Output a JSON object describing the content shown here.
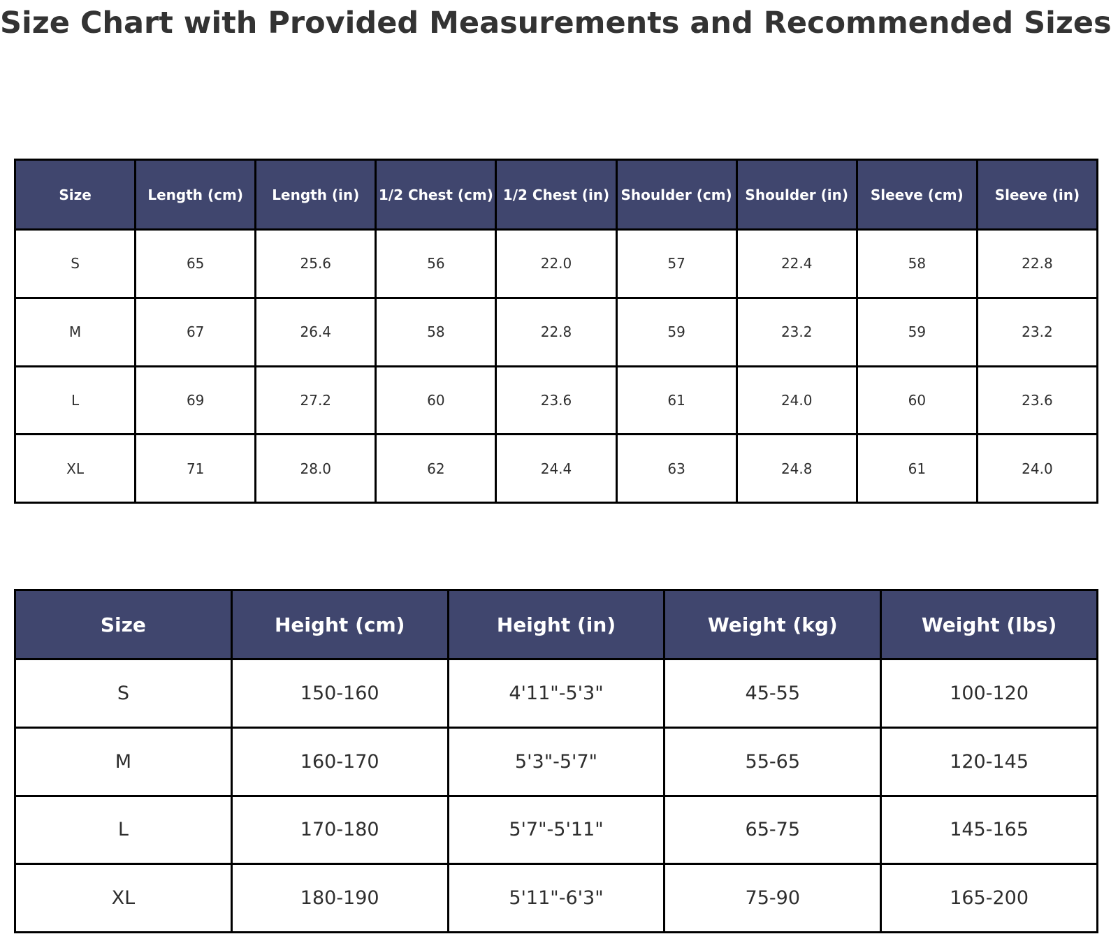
{
  "title": "Size Chart with Provided Measurements and Recommended Sizes",
  "colors": {
    "header_bg": "#40466e",
    "header_text": "#ffffff",
    "cell_bg": "#ffffff",
    "cell_text": "#2e2e2e",
    "border": "#000000",
    "title_text": "#333333"
  },
  "chart_data": [
    {
      "type": "table",
      "columns": [
        "Size",
        "Length (cm)",
        "Length (in)",
        "1/2 Chest (cm)",
        "1/2 Chest (in)",
        "Shoulder (cm)",
        "Shoulder (in)",
        "Sleeve (cm)",
        "Sleeve (in)"
      ],
      "rows": [
        [
          "S",
          "65",
          "25.6",
          "56",
          "22.0",
          "57",
          "22.4",
          "58",
          "22.8"
        ],
        [
          "M",
          "67",
          "26.4",
          "58",
          "22.8",
          "59",
          "23.2",
          "59",
          "23.2"
        ],
        [
          "L",
          "69",
          "27.2",
          "60",
          "23.6",
          "61",
          "24.0",
          "60",
          "23.6"
        ],
        [
          "XL",
          "71",
          "28.0",
          "62",
          "24.4",
          "63",
          "24.8",
          "61",
          "24.0"
        ]
      ]
    },
    {
      "type": "table",
      "columns": [
        "Size",
        "Height (cm)",
        "Height (in)",
        "Weight (kg)",
        "Weight (lbs)"
      ],
      "rows": [
        [
          "S",
          "150-160",
          "4'11\"-5'3\"",
          "45-55",
          "100-120"
        ],
        [
          "M",
          "160-170",
          "5'3\"-5'7\"",
          "55-65",
          "120-145"
        ],
        [
          "L",
          "170-180",
          "5'7\"-5'11\"",
          "65-75",
          "145-165"
        ],
        [
          "XL",
          "180-190",
          "5'11\"-6'3\"",
          "75-90",
          "165-200"
        ]
      ]
    }
  ]
}
